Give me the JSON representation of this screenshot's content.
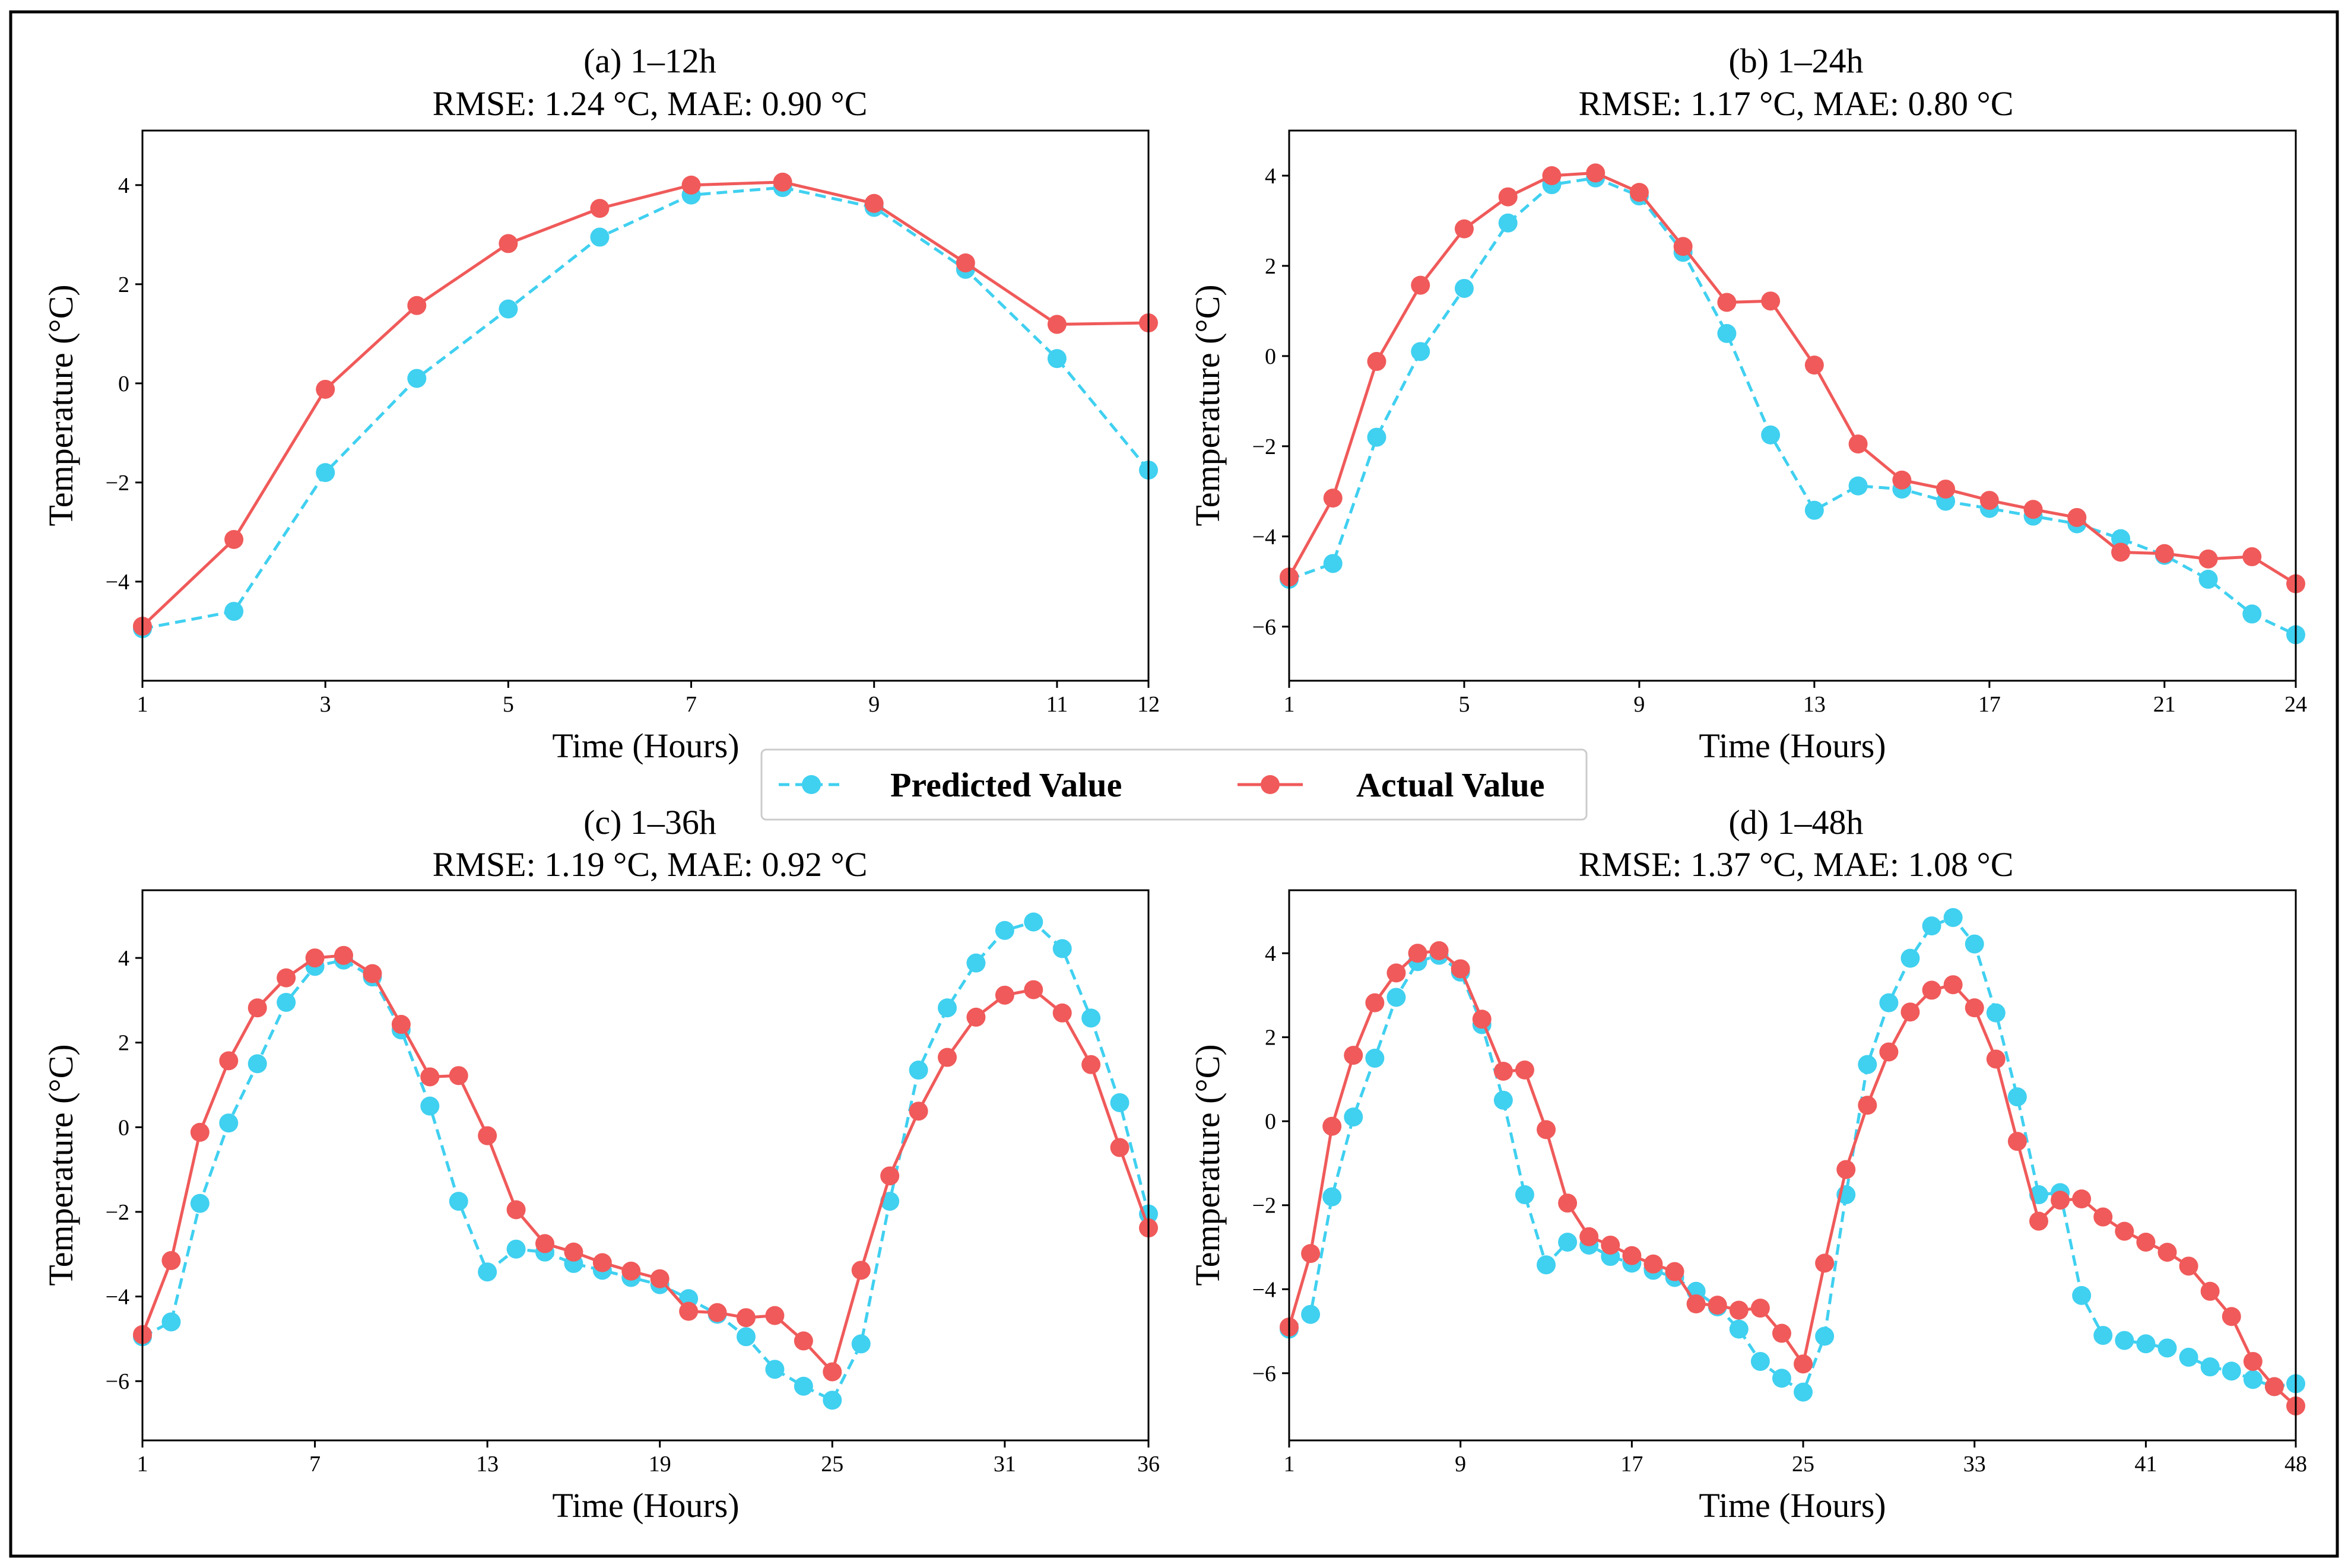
{
  "colors": {
    "predicted": "#40d0f0",
    "actual": "#f05a5a",
    "axis": "#000000",
    "border": "#000000"
  },
  "legend": {
    "placement": "center",
    "predicted_label": "Predicted Value",
    "actual_label": "Actual Value"
  },
  "chart_data": [
    {
      "type": "line",
      "title": "(a) 1–12h",
      "subtitle": "RMSE: 1.24 °C, MAE: 0.90 °C",
      "xlabel": "Time (Hours)",
      "ylabel": "Temperature (°C)",
      "xlim": [
        1,
        12
      ],
      "ylim": [
        -6,
        5.1
      ],
      "xticks": [
        1,
        3,
        5,
        7,
        9,
        11,
        12
      ],
      "yticks": [
        -4,
        -2,
        0,
        2,
        4
      ],
      "x": [
        1,
        2,
        3,
        4,
        5,
        6,
        7,
        8,
        9,
        10,
        11,
        12
      ],
      "series": [
        {
          "name": "Predicted Value",
          "style": "dashed",
          "values": [
            -4.95,
            -4.6,
            -1.8,
            0.1,
            1.5,
            2.95,
            3.8,
            3.95,
            3.55,
            2.3,
            0.5,
            -1.75
          ]
        },
        {
          "name": "Actual Value",
          "style": "solid",
          "values": [
            -4.9,
            -3.15,
            -0.12,
            1.57,
            2.82,
            3.53,
            4.0,
            4.06,
            3.63,
            2.43,
            1.19,
            1.22
          ]
        }
      ]
    },
    {
      "type": "line",
      "title": "(b) 1–24h",
      "subtitle": "RMSE: 1.17 °C, MAE: 0.80 °C",
      "xlabel": "Time (Hours)",
      "ylabel": "Temperature (°C)",
      "xlim": [
        1,
        24
      ],
      "ylim": [
        -7.2,
        5.0
      ],
      "xticks": [
        1,
        5,
        9,
        13,
        17,
        21,
        24
      ],
      "yticks": [
        -6,
        -4,
        -2,
        0,
        2,
        4
      ],
      "x": [
        1,
        2,
        3,
        4,
        5,
        6,
        7,
        8,
        9,
        10,
        11,
        12,
        13,
        14,
        15,
        16,
        17,
        18,
        19,
        20,
        21,
        22,
        23,
        24
      ],
      "series": [
        {
          "name": "Predicted Value",
          "style": "dashed",
          "values": [
            -4.95,
            -4.6,
            -1.8,
            0.1,
            1.5,
            2.95,
            3.8,
            3.95,
            3.55,
            2.3,
            0.5,
            -1.75,
            -3.42,
            -2.88,
            -2.95,
            -3.22,
            -3.38,
            -3.55,
            -3.72,
            -4.05,
            -4.42,
            -4.95,
            -5.72,
            -6.18
          ]
        },
        {
          "name": "Actual Value",
          "style": "solid",
          "values": [
            -4.9,
            -3.15,
            -0.12,
            1.57,
            2.82,
            3.53,
            4.0,
            4.06,
            3.63,
            2.43,
            1.19,
            1.22,
            -0.2,
            -1.95,
            -2.75,
            -2.95,
            -3.2,
            -3.4,
            -3.58,
            -4.35,
            -4.38,
            -4.5,
            -4.45,
            -5.05
          ]
        }
      ]
    },
    {
      "type": "line",
      "title": "(c) 1–36h",
      "subtitle": "RMSE: 1.19 °C, MAE: 0.92 °C",
      "xlabel": "Time (Hours)",
      "ylabel": "Temperature (°C)",
      "xlim": [
        1,
        36
      ],
      "ylim": [
        -7.4,
        5.6
      ],
      "xticks": [
        1,
        7,
        13,
        19,
        25,
        31,
        36
      ],
      "yticks": [
        -6,
        -4,
        -2,
        0,
        2,
        4
      ],
      "x": [
        1,
        2,
        3,
        4,
        5,
        6,
        7,
        8,
        9,
        10,
        11,
        12,
        13,
        14,
        15,
        16,
        17,
        18,
        19,
        20,
        21,
        22,
        23,
        24,
        25,
        26,
        27,
        28,
        29,
        30,
        31,
        32,
        33,
        34,
        35,
        36
      ],
      "series": [
        {
          "name": "Predicted Value",
          "style": "dashed",
          "values": [
            -4.95,
            -4.6,
            -1.8,
            0.1,
            1.5,
            2.95,
            3.8,
            3.95,
            3.55,
            2.3,
            0.5,
            -1.75,
            -3.42,
            -2.88,
            -2.95,
            -3.22,
            -3.38,
            -3.55,
            -3.72,
            -4.05,
            -4.42,
            -4.95,
            -5.72,
            -6.12,
            -6.45,
            -5.12,
            -1.75,
            1.35,
            2.82,
            3.88,
            4.65,
            4.85,
            4.22,
            2.58,
            0.58,
            -2.05
          ]
        },
        {
          "name": "Actual Value",
          "style": "solid",
          "values": [
            -4.9,
            -3.15,
            -0.12,
            1.57,
            2.82,
            3.53,
            4.0,
            4.06,
            3.63,
            2.43,
            1.19,
            1.22,
            -0.2,
            -1.95,
            -2.75,
            -2.95,
            -3.2,
            -3.4,
            -3.58,
            -4.35,
            -4.38,
            -4.5,
            -4.45,
            -5.05,
            -5.78,
            -3.38,
            -1.15,
            0.38,
            1.65,
            2.6,
            3.12,
            3.25,
            2.7,
            1.48,
            -0.48,
            -2.38
          ]
        }
      ]
    },
    {
      "type": "line",
      "title": "(d) 1–48h",
      "subtitle": "RMSE: 1.37 °C, MAE: 1.08 °C",
      "xlabel": "Time (Hours)",
      "ylabel": "Temperature (°C)",
      "xlim": [
        1,
        48
      ],
      "ylim": [
        -7.6,
        5.5
      ],
      "xticks": [
        1,
        9,
        17,
        25,
        33,
        41,
        48
      ],
      "yticks": [
        -6,
        -4,
        -2,
        0,
        2,
        4
      ],
      "x": [
        1,
        2,
        3,
        4,
        5,
        6,
        7,
        8,
        9,
        10,
        11,
        12,
        13,
        14,
        15,
        16,
        17,
        18,
        19,
        20,
        21,
        22,
        23,
        24,
        25,
        26,
        27,
        28,
        29,
        30,
        31,
        32,
        33,
        34,
        35,
        36,
        37,
        38,
        39,
        40,
        41,
        42,
        43,
        44,
        45,
        46,
        47,
        48
      ],
      "series": [
        {
          "name": "Predicted Value",
          "style": "dashed",
          "values": [
            -4.95,
            -4.6,
            -1.8,
            0.1,
            1.5,
            2.95,
            3.8,
            3.95,
            3.55,
            2.3,
            0.5,
            -1.75,
            -3.42,
            -2.88,
            -2.95,
            -3.22,
            -3.38,
            -3.55,
            -3.72,
            -4.05,
            -4.42,
            -4.95,
            -5.72,
            -6.12,
            -6.45,
            -5.12,
            -1.75,
            1.35,
            2.82,
            3.88,
            4.65,
            4.85,
            4.22,
            2.58,
            0.58,
            -1.75,
            -1.7,
            -4.15,
            -5.1,
            -5.22,
            -5.3,
            -5.4,
            -5.62,
            -5.85,
            -5.95,
            -6.15,
            -6.32,
            -6.25
          ]
        },
        {
          "name": "Actual Value",
          "style": "solid",
          "values": [
            -4.9,
            -3.15,
            -0.12,
            1.57,
            2.82,
            3.53,
            4.0,
            4.06,
            3.63,
            2.43,
            1.19,
            1.22,
            -0.2,
            -1.95,
            -2.75,
            -2.95,
            -3.2,
            -3.4,
            -3.58,
            -4.35,
            -4.38,
            -4.5,
            -4.45,
            -5.05,
            -5.78,
            -3.38,
            -1.15,
            0.38,
            1.65,
            2.6,
            3.12,
            3.25,
            2.7,
            1.48,
            -0.48,
            -2.38,
            -1.88,
            -1.85,
            -2.28,
            -2.62,
            -2.88,
            -3.12,
            -3.45,
            -4.05,
            -4.65,
            -5.72,
            -6.32,
            -6.78
          ]
        }
      ]
    }
  ]
}
